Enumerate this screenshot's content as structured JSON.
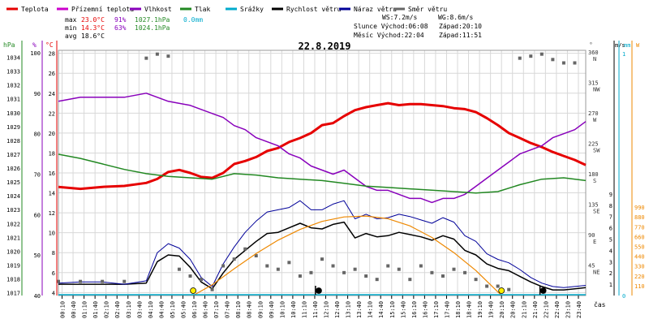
{
  "legend": [
    {
      "label": "Teplota",
      "color": "#e60000"
    },
    {
      "label": "Přízemní teplota",
      "color": "#cc00cc"
    },
    {
      "label": "Vlhkost",
      "color": "#8800bb"
    },
    {
      "label": "Tlak",
      "color": "#228822"
    },
    {
      "label": "Srážky",
      "color": "#00aacc"
    },
    {
      "label": "Rychlost větru",
      "color": "#000000"
    },
    {
      "label": "Náraz větru",
      "color": "#000099"
    },
    {
      "label": "Směr větru",
      "color": "#666666"
    }
  ],
  "stats": {
    "max": {
      "label": "max",
      "temp": "23.0°C",
      "hum": "91%",
      "press": "1027.1hPa",
      "rain": "0.0mm"
    },
    "min": {
      "label": "min",
      "temp": "14.3°C",
      "hum": "63%",
      "press": "1024.1hPa"
    },
    "avg": {
      "label": "avg",
      "temp": "18.6°C"
    }
  },
  "wind_info": {
    "ws": "WS:7.2m/s",
    "wg": "WG:8.6m/s"
  },
  "sun": {
    "rise_label": "Slunce Východ:06:08",
    "set_label": "Západ:20:10"
  },
  "moon": {
    "rise_label": "Měsíc  Východ:22:04",
    "set_label": "Západ:11:51"
  },
  "title": "22.8.2019",
  "time_axis_label": "čas",
  "axis_units": {
    "hpa": "hPa",
    "percent": "%",
    "celsius": "°C",
    "direction": "°",
    "speed": "m/s",
    "rain": "mm",
    "solar": "W"
  },
  "colors": {
    "temp": "#e60000",
    "humidity": "#8800bb",
    "pressure": "#228822",
    "wind_speed": "#000000",
    "gust": "#000099",
    "direction": "#808080",
    "solar": "#ee8800",
    "rain": "#00aacc",
    "grid": "#d8d8d8"
  },
  "chart_data": {
    "type": "line",
    "title": "22.8.2019",
    "x_unit": "time of day",
    "x_ticks": [
      "00:10",
      "00:40",
      "01:10",
      "01:40",
      "02:10",
      "02:40",
      "03:10",
      "03:40",
      "04:10",
      "04:40",
      "05:10",
      "05:40",
      "06:10",
      "06:40",
      "07:10",
      "07:40",
      "08:10",
      "08:40",
      "09:10",
      "09:40",
      "10:10",
      "10:40",
      "11:10",
      "11:40",
      "12:10",
      "12:40",
      "13:10",
      "13:40",
      "14:10",
      "14:40",
      "15:10",
      "15:40",
      "16:10",
      "16:40",
      "17:10",
      "17:40",
      "18:10",
      "18:40",
      "19:10",
      "19:40",
      "20:10",
      "20:40",
      "21:10",
      "21:40",
      "22:10",
      "22:40",
      "23:10",
      "23:40"
    ],
    "axes": {
      "pressure_hpa": {
        "ticks": [
          1017,
          1018,
          1019,
          1020,
          1021,
          1022,
          1023,
          1024,
          1025,
          1026,
          1027,
          1028,
          1029,
          1030,
          1031,
          1032,
          1033,
          1034
        ]
      },
      "humidity_percent": {
        "ticks": [
          40,
          50,
          60,
          70,
          80,
          90,
          100
        ]
      },
      "temperature_c": {
        "ticks": [
          4,
          6,
          8,
          10,
          12,
          14,
          16,
          18,
          20,
          22,
          24,
          26,
          28
        ]
      },
      "direction_deg": {
        "ticks": [
          {
            "value": 360,
            "dir": "N"
          },
          {
            "value": 315,
            "dir": "NW"
          },
          {
            "value": 270,
            "dir": "W"
          },
          {
            "value": 225,
            "dir": "SW"
          },
          {
            "value": 180,
            "dir": "S"
          },
          {
            "value": 135,
            "dir": "SE"
          },
          {
            "value": 90,
            "dir": "E"
          },
          {
            "value": 45,
            "dir": "NE"
          }
        ]
      },
      "wind_ms": {
        "ticks": [
          1,
          2,
          3,
          4,
          5,
          6,
          7,
          8,
          9
        ]
      },
      "rain_mm": {
        "ticks": [
          0,
          1
        ],
        "labels": [
          "0",
          "1"
        ]
      },
      "solar_w": {
        "ticks": [
          110,
          220,
          330,
          440,
          550,
          660,
          770,
          880,
          990
        ]
      }
    },
    "series": [
      {
        "name": "Teplota",
        "axis": "temperature_c",
        "color": "#e60000",
        "x": [
          0,
          1,
          2,
          3,
          4,
          4.5,
          5,
          5.5,
          6,
          6.5,
          7,
          7.5,
          8,
          8.5,
          9,
          9.5,
          10,
          10.5,
          11,
          11.5,
          12,
          12.5,
          13,
          13.5,
          14,
          14.5,
          15,
          15.5,
          16,
          16.5,
          17,
          17.5,
          18,
          18.5,
          19,
          19.5,
          20,
          20.5,
          21,
          21.5,
          22,
          22.5,
          23,
          23.5,
          24
        ],
        "values": [
          14.6,
          14.4,
          14.6,
          14.7,
          15.0,
          15.4,
          16.1,
          16.3,
          16.0,
          15.6,
          15.5,
          16.0,
          16.9,
          17.2,
          17.6,
          18.2,
          18.5,
          19.1,
          19.5,
          20.0,
          20.8,
          21.0,
          21.7,
          22.3,
          22.6,
          22.8,
          23.0,
          22.8,
          22.9,
          22.9,
          22.8,
          22.7,
          22.5,
          22.4,
          22.1,
          21.5,
          20.8,
          20.0,
          19.5,
          19.0,
          18.6,
          18.1,
          17.7,
          17.3,
          16.8
        ]
      },
      {
        "name": "Vlhkost",
        "axis": "humidity_percent",
        "color": "#8800bb",
        "x": [
          0,
          1,
          2,
          3,
          4,
          5,
          6,
          6.5,
          7,
          7.5,
          8,
          8.5,
          9,
          9.5,
          10,
          10.5,
          11,
          11.5,
          12,
          12.5,
          13,
          13.5,
          14,
          14.5,
          15,
          15.5,
          16,
          16.5,
          17,
          17.5,
          18,
          18.5,
          19,
          19.5,
          20,
          20.5,
          21,
          21.5,
          22,
          22.5,
          23,
          23.5,
          24
        ],
        "values": [
          88,
          89,
          89,
          89,
          90,
          88,
          87,
          86,
          85,
          84,
          82,
          81,
          79,
          78,
          77,
          75,
          74,
          72,
          71,
          70,
          71,
          69,
          67,
          66,
          66,
          65,
          64,
          64,
          63,
          64,
          64,
          65,
          67,
          69,
          71,
          73,
          75,
          76,
          77,
          79,
          80,
          81,
          83
        ]
      },
      {
        "name": "Tlak",
        "axis": "pressure_hpa",
        "color": "#228822",
        "x": [
          0,
          1,
          2,
          3,
          4,
          5,
          6,
          7,
          8,
          9,
          10,
          11,
          12,
          13,
          14,
          15,
          16,
          17,
          18,
          19,
          20,
          21,
          22,
          23,
          24
        ],
        "values": [
          1027.0,
          1026.7,
          1026.3,
          1025.9,
          1025.6,
          1025.4,
          1025.3,
          1025.2,
          1025.6,
          1025.5,
          1025.3,
          1025.2,
          1025.1,
          1024.9,
          1024.7,
          1024.6,
          1024.5,
          1024.4,
          1024.3,
          1024.2,
          1024.3,
          1024.8,
          1025.2,
          1025.3,
          1025.1
        ]
      },
      {
        "name": "Rychlost větru",
        "axis": "wind_ms",
        "color": "#000000",
        "x": [
          0,
          1,
          2,
          3,
          4,
          4.5,
          5,
          5.5,
          6,
          6.5,
          7,
          7.5,
          8,
          8.5,
          9,
          9.5,
          10,
          10.5,
          11,
          11.5,
          12,
          12.5,
          13,
          13.5,
          14,
          14.5,
          15,
          15.5,
          16,
          16.5,
          17,
          17.5,
          18,
          18.5,
          19,
          19.5,
          20,
          20.5,
          21,
          21.5,
          22,
          22.5,
          23,
          23.5,
          24
        ],
        "values": [
          1.0,
          1.0,
          1.0,
          1.0,
          1.1,
          3.0,
          3.6,
          3.5,
          2.5,
          1.2,
          0.6,
          2.0,
          3.2,
          4.0,
          4.8,
          5.5,
          5.6,
          6.0,
          6.4,
          6.0,
          5.9,
          6.3,
          6.5,
          5.1,
          5.5,
          5.2,
          5.3,
          5.6,
          5.4,
          5.2,
          4.9,
          5.3,
          5.0,
          4.0,
          3.6,
          2.8,
          2.4,
          2.2,
          1.7,
          1.2,
          0.8,
          0.5,
          0.5,
          0.6,
          0.7
        ]
      },
      {
        "name": "Náraz větru",
        "axis": "wind_ms",
        "color": "#000099",
        "x": [
          0,
          1,
          2,
          3,
          4,
          4.5,
          5,
          5.5,
          6,
          6.5,
          7,
          7.5,
          8,
          8.5,
          9,
          9.5,
          10,
          10.5,
          11,
          11.5,
          12,
          12.5,
          13,
          13.5,
          14,
          14.5,
          15,
          15.5,
          16,
          16.5,
          17,
          17.5,
          18,
          18.5,
          19,
          19.5,
          20,
          20.5,
          21,
          21.5,
          22,
          22.5,
          23,
          23.5,
          24
        ],
        "values": [
          1.1,
          1.2,
          1.2,
          1.0,
          1.3,
          3.8,
          4.6,
          4.2,
          3.2,
          1.6,
          0.8,
          2.8,
          4.3,
          5.6,
          6.6,
          7.4,
          7.6,
          7.8,
          8.4,
          7.6,
          7.6,
          8.1,
          8.4,
          6.8,
          7.2,
          6.8,
          6.9,
          7.2,
          7.0,
          6.7,
          6.4,
          6.9,
          6.5,
          5.3,
          4.8,
          3.7,
          3.2,
          2.9,
          2.3,
          1.6,
          1.1,
          0.8,
          0.7,
          0.8,
          0.9
        ]
      },
      {
        "name": "Směr větru",
        "axis": "direction_deg",
        "color": "#666666",
        "x": [
          0,
          1,
          2,
          3,
          4,
          4.5,
          5,
          5.5,
          6,
          6.5,
          7,
          7.5,
          8,
          8.5,
          9,
          9.5,
          10,
          10.5,
          11,
          11.5,
          12,
          12.5,
          13,
          13.5,
          14,
          14.5,
          15,
          15.5,
          16,
          16.5,
          17,
          17.5,
          18,
          18.5,
          19,
          19.5,
          20,
          20.5,
          21,
          21.5,
          22,
          22.5,
          23,
          23.5
        ],
        "values": [
          22,
          22,
          22,
          22,
          352,
          358,
          355,
          40,
          30,
          25,
          10,
          45,
          55,
          70,
          60,
          45,
          40,
          50,
          30,
          35,
          55,
          45,
          35,
          40,
          30,
          25,
          45,
          40,
          25,
          45,
          35,
          30,
          40,
          35,
          25,
          15,
          15,
          10,
          352,
          355,
          358,
          350,
          345,
          345
        ]
      },
      {
        "name": "Solar",
        "axis": "solar_w",
        "color": "#ee8800",
        "x": [
          6.13,
          7,
          8,
          9,
          10,
          11,
          12,
          13,
          14,
          15,
          16,
          17,
          18,
          19,
          20,
          20.17
        ],
        "values": [
          0,
          120,
          300,
          470,
          620,
          740,
          830,
          880,
          890,
          860,
          780,
          650,
          480,
          280,
          40,
          0
        ]
      }
    ],
    "events": [
      {
        "type": "sunrise",
        "time": "06:08"
      },
      {
        "type": "sunset",
        "time": "20:10"
      },
      {
        "type": "moonrise",
        "time": "22:04"
      },
      {
        "type": "moonset",
        "time": "11:51"
      }
    ]
  }
}
